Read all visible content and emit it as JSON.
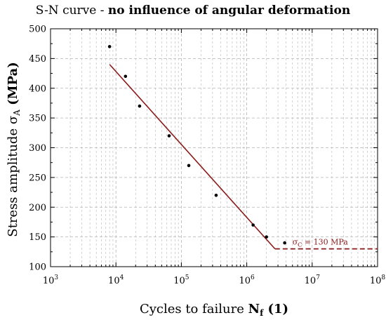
{
  "chart_data": {
    "type": "line",
    "title": {
      "plain": "S-N curve - ",
      "bold": "no influence of angular deformation"
    },
    "xlabel": {
      "plain": "Cycles to failure ",
      "bold_main": "N",
      "bold_sub": "f",
      "suffix": " (1)"
    },
    "ylabel": {
      "plain": "Stress amplitude σ",
      "sub": "A",
      "bold": " (MPa)"
    },
    "x_scale": "log",
    "xlim": [
      1000,
      100000000
    ],
    "ylim": [
      100,
      500
    ],
    "x_ticks": [
      {
        "value": 1000,
        "base": "10",
        "exp": "3"
      },
      {
        "value": 10000,
        "base": "10",
        "exp": "4"
      },
      {
        "value": 100000,
        "base": "10",
        "exp": "5"
      },
      {
        "value": 1000000,
        "base": "10",
        "exp": "6"
      },
      {
        "value": 10000000,
        "base": "10",
        "exp": "7"
      },
      {
        "value": 100000000,
        "base": "10",
        "exp": "8"
      }
    ],
    "y_ticks": [
      100,
      150,
      200,
      250,
      300,
      350,
      400,
      450,
      500
    ],
    "grid": true,
    "series": [
      {
        "kind": "scatter",
        "color": "#000000",
        "points": [
          {
            "x": 8000,
            "y": 470
          },
          {
            "x": 14000,
            "y": 420
          },
          {
            "x": 23000,
            "y": 370
          },
          {
            "x": 65000,
            "y": 320
          },
          {
            "x": 130000,
            "y": 270
          },
          {
            "x": 340000,
            "y": 220
          },
          {
            "x": 1250000,
            "y": 170
          },
          {
            "x": 2000000,
            "y": 150
          },
          {
            "x": 3800000,
            "y": 140
          }
        ]
      },
      {
        "kind": "fit-line",
        "color": "#8b1a1a",
        "points": [
          {
            "x": 8000,
            "y": 440
          },
          {
            "x": 2700000,
            "y": 130
          }
        ]
      },
      {
        "kind": "endurance-limit",
        "color": "#8b1a1a",
        "dash": true,
        "points": [
          {
            "x": 2700000,
            "y": 130
          },
          {
            "x": 100000000,
            "y": 130
          }
        ]
      }
    ],
    "annotation": {
      "sigma": "σ",
      "sub": "C",
      "text": " = 130 MPa",
      "x": 5000000,
      "y": 137
    },
    "colors": {
      "curve": "#8b1a1a",
      "grid": "#b4b4b4",
      "axis": "#000000"
    }
  }
}
